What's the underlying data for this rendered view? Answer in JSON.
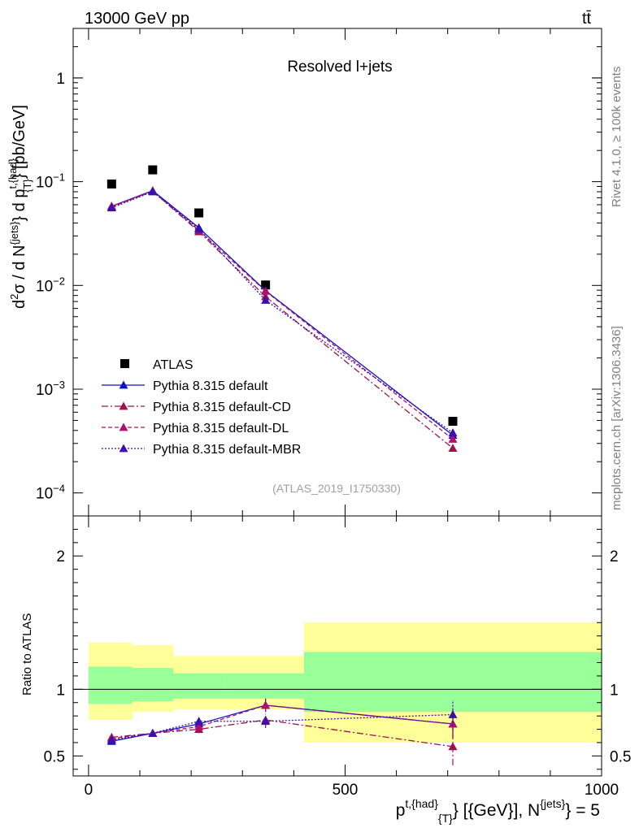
{
  "header": {
    "energy_label": "13000 GeV pp",
    "process_label": "tt̄"
  },
  "side_labels": {
    "rivet": "Rivet 4.1.0, ≥ 100k events",
    "source": "mcplots.cern.ch [arXiv:1306.3436]"
  },
  "colors": {
    "data": "#000000",
    "default": "#1010c8",
    "cd": "#a0104a",
    "dl": "#b0106a",
    "mbr": "#3a10b0",
    "band_inner": "#99ff99",
    "band_outer": "#ffff99"
  },
  "chart_data": [
    {
      "type": "scatter",
      "title": "Resolved l+jets",
      "analysis_label": "(ATLAS_2019_I1750330)",
      "ylabel": "d²σ / d N{jets} d p_T{t,had} [pb/GeV]",
      "yscale": "log",
      "ylim": [
        6e-05,
        3
      ],
      "xlim": [
        -30,
        1000
      ],
      "ytick_labels": [
        {
          "value": 1,
          "label": "1"
        },
        {
          "value": 0.1,
          "base": "10",
          "exp": "−1"
        },
        {
          "value": 0.01,
          "base": "10",
          "exp": "−2"
        },
        {
          "value": 0.001,
          "base": "10",
          "exp": "−3"
        },
        {
          "value": 0.0001,
          "base": "10",
          "exp": "−4"
        }
      ],
      "x": [
        45,
        125,
        215,
        345,
        710
      ],
      "bin_edges": [
        0,
        85,
        165,
        265,
        420,
        1000
      ],
      "series": [
        {
          "name": "ATLAS",
          "key": "data",
          "style": "marker",
          "values": [
            0.095,
            0.13,
            0.05,
            0.0101,
            0.00049
          ]
        },
        {
          "name": "Pythia 8.315 default",
          "key": "default",
          "style": "solid",
          "values": [
            0.058,
            0.082,
            0.036,
            0.0089,
            0.00036
          ]
        },
        {
          "name": "Pythia 8.315 default-CD",
          "key": "cd",
          "style": "dashdot",
          "values": [
            0.058,
            0.081,
            0.033,
            0.0078,
            0.00027
          ]
        },
        {
          "name": "Pythia 8.315 default-DL",
          "key": "dl",
          "style": "dashed",
          "values": [
            0.057,
            0.081,
            0.034,
            0.0088,
            0.00033
          ]
        },
        {
          "name": "Pythia 8.315 default-MBR",
          "key": "mbr",
          "style": "dotted",
          "values": [
            0.056,
            0.08,
            0.035,
            0.0072,
            0.00038
          ]
        }
      ]
    },
    {
      "type": "line",
      "ylabel": "Ratio to ATLAS",
      "ylim": [
        0.35,
        2.3
      ],
      "xlim": [
        -30,
        1000
      ],
      "xlabel": {
        "main": "p",
        "sup": "t,{had}",
        "sub": "{T}",
        "middle": " [{GeV}], N",
        "sup2": "{jets}",
        "tail": "} = 5"
      },
      "xtick_labels": [
        {
          "value": 0,
          "label": "0"
        },
        {
          "value": 500,
          "label": "500"
        },
        {
          "value": 1000,
          "label": "1000"
        }
      ],
      "ytick_labels": [
        {
          "value": 0.5,
          "label": "0.5"
        },
        {
          "value": 1,
          "label": "1"
        },
        {
          "value": 2,
          "label": "2"
        }
      ],
      "x": [
        45,
        125,
        215,
        345,
        710
      ],
      "bands": [
        {
          "x0": 0,
          "x1": 85,
          "inner": [
            0.89,
            1.17
          ],
          "outer": [
            0.77,
            1.35
          ]
        },
        {
          "x0": 85,
          "x1": 165,
          "inner": [
            0.91,
            1.16
          ],
          "outer": [
            0.83,
            1.33
          ]
        },
        {
          "x0": 165,
          "x1": 265,
          "inner": [
            0.93,
            1.12
          ],
          "outer": [
            0.85,
            1.25
          ]
        },
        {
          "x0": 265,
          "x1": 420,
          "inner": [
            0.93,
            1.12
          ],
          "outer": [
            0.85,
            1.25
          ]
        },
        {
          "x0": 420,
          "x1": 1000,
          "inner": [
            0.83,
            1.28
          ],
          "outer": [
            0.6,
            1.5
          ]
        }
      ],
      "series": [
        {
          "name": "Pythia 8.315 default",
          "key": "default",
          "style": "solid",
          "values": [
            0.61,
            0.67,
            0.74,
            0.88,
            0.74
          ],
          "errors": [
            0.02,
            0.02,
            0.03,
            0.05,
            0.1
          ]
        },
        {
          "name": "Pythia 8.315 default-CD",
          "key": "cd",
          "style": "dashdot",
          "values": [
            0.64,
            0.67,
            0.7,
            0.77,
            0.57
          ],
          "errors": [
            0.02,
            0.02,
            0.03,
            0.05,
            0.14
          ]
        },
        {
          "name": "Pythia 8.315 default-DL",
          "key": "dl",
          "style": "dashed",
          "values": [
            0.63,
            0.67,
            0.72,
            0.88,
            0.74
          ],
          "errors": [
            0.02,
            0.02,
            0.03,
            0.05,
            0.11
          ]
        },
        {
          "name": "Pythia 8.315 default-MBR",
          "key": "mbr",
          "style": "dotted",
          "values": [
            0.62,
            0.67,
            0.76,
            0.76,
            0.81
          ],
          "errors": [
            0.02,
            0.02,
            0.03,
            0.05,
            0.11
          ]
        }
      ]
    }
  ]
}
